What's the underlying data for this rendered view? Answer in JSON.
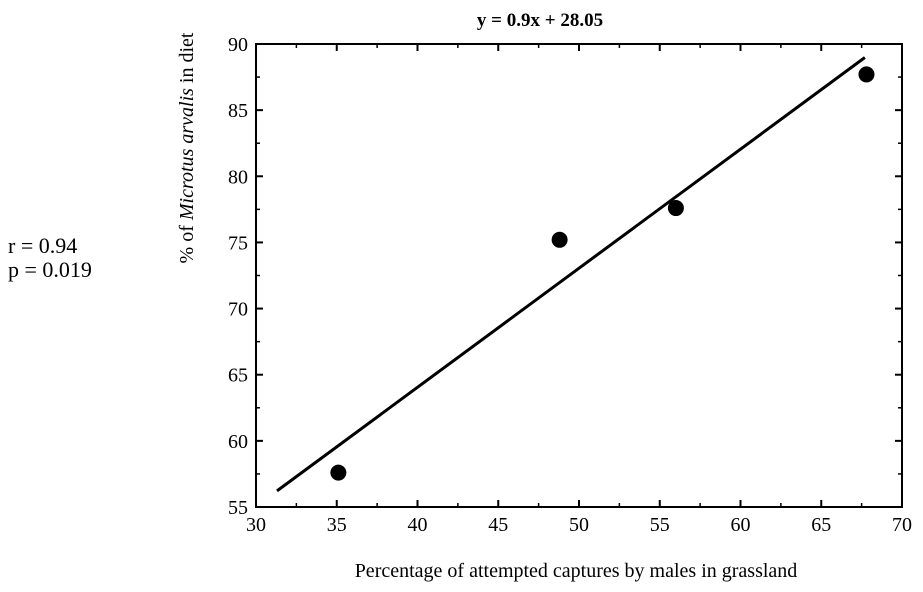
{
  "chart_data": {
    "type": "scatter",
    "title": "y = 0.9x + 28.05",
    "xlabel": "Percentage of attempted captures by males in grassland",
    "ylabel_prefix": "% of ",
    "ylabel_italic": "Microtus arvalis",
    "ylabel_suffix": " in diet",
    "xlim": [
      30,
      70
    ],
    "ylim": [
      55,
      90
    ],
    "xticks": [
      30,
      35,
      40,
      45,
      50,
      55,
      60,
      65,
      70
    ],
    "yticks": [
      55,
      60,
      65,
      70,
      75,
      80,
      85,
      90
    ],
    "points": [
      {
        "x": 35.1,
        "y": 57.6
      },
      {
        "x": 48.8,
        "y": 75.2
      },
      {
        "x": 56.0,
        "y": 77.6
      },
      {
        "x": 67.8,
        "y": 87.7
      }
    ],
    "fit_line": {
      "slope": 0.9,
      "intercept": 28.05,
      "x_range": [
        31.3,
        67.7
      ]
    },
    "grid": false
  },
  "stats": {
    "r_text": "r = 0.94",
    "p_text": "p = 0.019"
  }
}
